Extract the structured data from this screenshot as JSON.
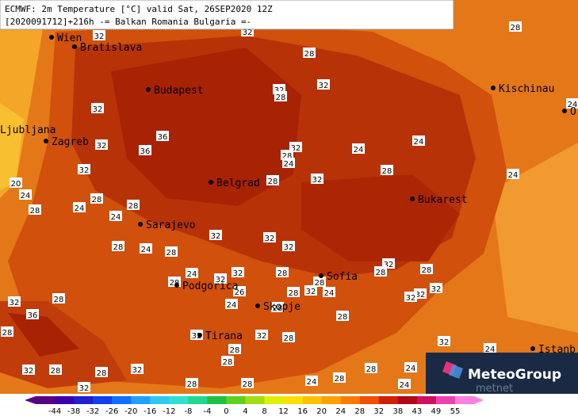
{
  "header": {
    "line1": "ECMWF: 2m Temperature [°C] valid Sat, 26SEP2020 12Z",
    "line2": "[2020091712]+216h -= Balkan Romania Bulgaria =-"
  },
  "cities": [
    "Wien",
    "Bratislava",
    "Budapest",
    "Kischinau",
    "O",
    "Ljubljana",
    "Zagreb",
    "Belgrad",
    "Bukarest",
    "Sarajevo",
    "Podgorica",
    "Sofia",
    "Skopje",
    "Tirana",
    "Istanb"
  ],
  "contour_labels": [
    32,
    32,
    28,
    28,
    32,
    32,
    28,
    32,
    24,
    32,
    28,
    24,
    24,
    32,
    36,
    36,
    24,
    32,
    28,
    32,
    28,
    24,
    20,
    24,
    28,
    28,
    28,
    24,
    24,
    32,
    32,
    24,
    28,
    32,
    28,
    32,
    28,
    24,
    28,
    28,
    32,
    32,
    28,
    26,
    28,
    32,
    32,
    32,
    28,
    32,
    24,
    32,
    28,
    24,
    28,
    36,
    28,
    32,
    32,
    28,
    28,
    28,
    32,
    24,
    28,
    32,
    28,
    28,
    32,
    28,
    24,
    28,
    28,
    28,
    32,
    24,
    24
  ],
  "colorbar": [
    -44,
    -38,
    -32,
    -26,
    -20,
    -16,
    -12,
    -8,
    -4,
    0,
    4,
    8,
    12,
    16,
    20,
    24,
    28,
    32,
    38,
    43,
    49,
    55
  ],
  "logo": {
    "brand": "MeteoGroup",
    "sub": "metnet"
  }
}
